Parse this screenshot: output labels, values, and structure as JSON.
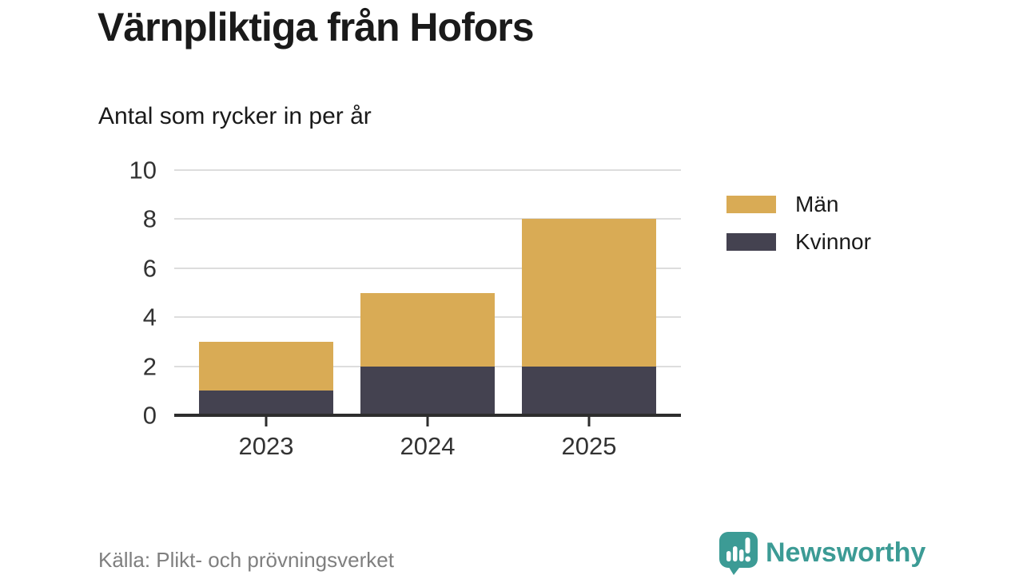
{
  "title": "Värnpliktiga från Hofors",
  "subtitle": "Antal som rycker in per år",
  "source": "Källa: Plikt- och prövningsverket",
  "branding": {
    "name": "Newsworthy",
    "color": "#3c9b95",
    "icon": "speech-bubble-bar-chart-icon"
  },
  "colors": {
    "men": "#d9ab55",
    "women": "#444250",
    "grid": "#dddddd",
    "axis": "#2d2d2d",
    "text": "#1a1a1a",
    "tick_text": "#333333",
    "muted_text": "#7f7f7f"
  },
  "legend": [
    {
      "label": "Män",
      "color": "#d9ab55"
    },
    {
      "label": "Kvinnor",
      "color": "#444250"
    }
  ],
  "chart_data": {
    "type": "bar",
    "stacked": true,
    "title": "Värnpliktiga från Hofors",
    "subtitle": "Antal som rycker in per år",
    "categories": [
      "2023",
      "2024",
      "2025"
    ],
    "series": [
      {
        "name": "Kvinnor",
        "color": "#444250",
        "values": [
          1,
          2,
          2
        ]
      },
      {
        "name": "Män",
        "color": "#d9ab55",
        "values": [
          2,
          3,
          6
        ]
      }
    ],
    "totals": [
      3,
      5,
      8
    ],
    "xlabel": "",
    "ylabel": "",
    "ylim": [
      0,
      10
    ],
    "yticks": [
      0,
      2,
      4,
      6,
      8,
      10
    ],
    "grid": true,
    "legend_position": "right"
  }
}
